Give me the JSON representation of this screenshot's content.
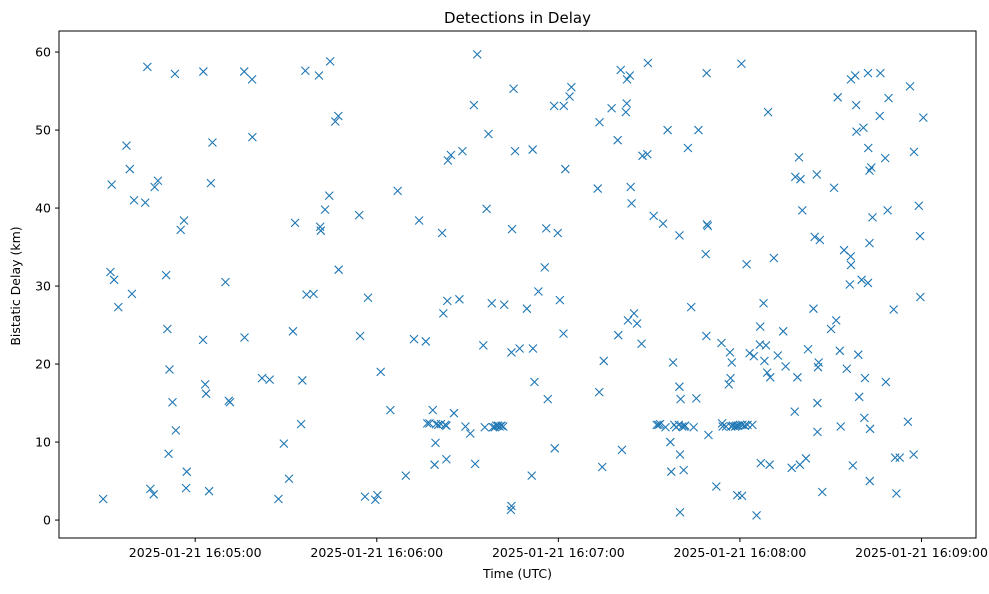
{
  "chart_data": {
    "type": "scatter",
    "title": "Detections in Delay",
    "xlabel": "Time (UTC)",
    "ylabel": "Bistatic Delay (km)",
    "marker": "x",
    "color": "#1f77b4",
    "grid": false,
    "legend": "none",
    "x_start": "2025-01-21 16:04:15",
    "x_end": "2025-01-21 16:09:18",
    "xlim": [
      0,
      303
    ],
    "ylim": [
      -2.3,
      62.7
    ],
    "x_ticks": [
      {
        "t": 45,
        "label": "2025-01-21 16:05:00"
      },
      {
        "t": 105,
        "label": "2025-01-21 16:06:00"
      },
      {
        "t": 165,
        "label": "2025-01-21 16:07:00"
      },
      {
        "t": 225,
        "label": "2025-01-21 16:08:00"
      },
      {
        "t": 285,
        "label": "2025-01-21 16:09:00"
      }
    ],
    "y_ticks": [
      {
        "v": 0,
        "label": "0"
      },
      {
        "v": 10,
        "label": "10"
      },
      {
        "v": 20,
        "label": "20"
      },
      {
        "v": 30,
        "label": "30"
      },
      {
        "v": 40,
        "label": "40"
      },
      {
        "v": 50,
        "label": "50"
      },
      {
        "v": 60,
        "label": "60"
      }
    ],
    "points": [
      [
        14.6,
        2.7
      ],
      [
        17.0,
        31.8
      ],
      [
        17.4,
        43.0
      ],
      [
        18.2,
        30.8
      ],
      [
        19.6,
        27.3
      ],
      [
        22.3,
        48.0
      ],
      [
        23.4,
        45.0
      ],
      [
        24.1,
        29.0
      ],
      [
        24.8,
        41.0
      ],
      [
        28.5,
        40.7
      ],
      [
        29.2,
        58.1
      ],
      [
        30.2,
        4.0
      ],
      [
        31.3,
        3.3
      ],
      [
        31.6,
        42.7
      ],
      [
        32.7,
        43.5
      ],
      [
        35.4,
        31.4
      ],
      [
        35.8,
        24.5
      ],
      [
        36.2,
        8.5
      ],
      [
        36.5,
        19.3
      ],
      [
        37.5,
        15.1
      ],
      [
        38.3,
        57.2
      ],
      [
        38.6,
        11.5
      ],
      [
        40.2,
        37.2
      ],
      [
        41.3,
        38.4
      ],
      [
        42.0,
        4.1
      ],
      [
        42.2,
        6.2
      ],
      [
        47.7,
        57.5
      ],
      [
        47.6,
        23.1
      ],
      [
        48.3,
        17.4
      ],
      [
        48.6,
        16.2
      ],
      [
        49.6,
        3.7
      ],
      [
        50.2,
        43.2
      ],
      [
        50.7,
        48.4
      ],
      [
        55.0,
        30.5
      ],
      [
        56.1,
        15.3
      ],
      [
        56.5,
        15.1
      ],
      [
        61.2,
        57.5
      ],
      [
        61.3,
        23.4
      ],
      [
        63.8,
        56.5
      ],
      [
        63.9,
        49.1
      ],
      [
        67.1,
        18.2
      ],
      [
        69.6,
        18.0
      ],
      [
        72.5,
        2.7
      ],
      [
        74.3,
        9.8
      ],
      [
        76.0,
        5.3
      ],
      [
        77.3,
        24.2
      ],
      [
        78.0,
        38.1
      ],
      [
        80.0,
        12.3
      ],
      [
        80.4,
        17.9
      ],
      [
        81.4,
        57.6
      ],
      [
        81.8,
        28.9
      ],
      [
        84.1,
        29.0
      ],
      [
        85.9,
        57.0
      ],
      [
        86.3,
        37.6
      ],
      [
        86.5,
        37.1
      ],
      [
        87.9,
        39.8
      ],
      [
        89.3,
        41.6
      ],
      [
        89.6,
        58.8
      ],
      [
        91.3,
        51.1
      ],
      [
        92.3,
        51.8
      ],
      [
        92.4,
        32.1
      ],
      [
        99.2,
        39.1
      ],
      [
        99.5,
        23.6
      ],
      [
        101.1,
        3.0
      ],
      [
        102.1,
        28.5
      ],
      [
        104.5,
        2.6
      ],
      [
        105.2,
        3.2
      ],
      [
        106.3,
        19.0
      ],
      [
        109.5,
        14.1
      ],
      [
        111.9,
        42.2
      ],
      [
        114.6,
        5.7
      ],
      [
        117.3,
        23.2
      ],
      [
        119.0,
        38.4
      ],
      [
        121.2,
        22.9
      ],
      [
        121.7,
        12.4
      ],
      [
        122.4,
        12.4
      ],
      [
        123.5,
        14.1
      ],
      [
        124.1,
        7.1
      ],
      [
        124.4,
        9.9
      ],
      [
        124.6,
        12.3
      ],
      [
        125.3,
        12.2
      ],
      [
        126.2,
        12.3
      ],
      [
        126.6,
        36.8
      ],
      [
        127.0,
        26.5
      ],
      [
        127.6,
        12.2
      ],
      [
        128.0,
        12.1
      ],
      [
        128.5,
        46.1
      ],
      [
        128.0,
        7.8
      ],
      [
        128.3,
        28.1
      ],
      [
        129.5,
        46.8
      ],
      [
        130.5,
        13.7
      ],
      [
        132.3,
        28.3
      ],
      [
        133.3,
        47.3
      ],
      [
        134.3,
        12.0
      ],
      [
        135.9,
        11.1
      ],
      [
        137.1,
        53.2
      ],
      [
        137.5,
        7.2
      ],
      [
        138.2,
        59.7
      ],
      [
        140.2,
        22.4
      ],
      [
        140.7,
        11.9
      ],
      [
        141.3,
        39.9
      ],
      [
        141.9,
        49.5
      ],
      [
        143.0,
        27.8
      ],
      [
        143.4,
        11.9
      ],
      [
        144.0,
        11.9
      ],
      [
        144.5,
        12.1
      ],
      [
        145.1,
        12.1
      ],
      [
        145.6,
        12.0
      ],
      [
        146.2,
        12.1
      ],
      [
        146.8,
        12.0
      ],
      [
        147.1,
        27.6
      ],
      [
        149.3,
        1.3
      ],
      [
        149.5,
        1.8
      ],
      [
        149.5,
        21.5
      ],
      [
        149.7,
        37.3
      ],
      [
        150.2,
        55.3
      ],
      [
        150.7,
        47.3
      ],
      [
        152.2,
        22.0
      ],
      [
        154.6,
        27.1
      ],
      [
        156.2,
        5.7
      ],
      [
        156.5,
        47.5
      ],
      [
        156.6,
        22.0
      ],
      [
        157.1,
        17.7
      ],
      [
        158.4,
        29.3
      ],
      [
        160.5,
        32.4
      ],
      [
        161.0,
        37.4
      ],
      [
        161.5,
        15.5
      ],
      [
        163.6,
        53.1
      ],
      [
        163.8,
        9.2
      ],
      [
        164.8,
        36.8
      ],
      [
        165.5,
        28.2
      ],
      [
        166.7,
        23.9
      ],
      [
        166.8,
        53.1
      ],
      [
        167.3,
        45.0
      ],
      [
        168.7,
        54.3
      ],
      [
        169.3,
        55.5
      ],
      [
        178.0,
        42.5
      ],
      [
        178.5,
        16.4
      ],
      [
        178.6,
        51.0
      ],
      [
        179.5,
        6.8
      ],
      [
        180.0,
        20.4
      ],
      [
        182.6,
        52.8
      ],
      [
        184.6,
        48.7
      ],
      [
        184.8,
        23.7
      ],
      [
        185.6,
        57.7
      ],
      [
        186.0,
        9.0
      ],
      [
        187.3,
        52.3
      ],
      [
        187.6,
        53.4
      ],
      [
        187.7,
        56.5
      ],
      [
        188.0,
        25.6
      ],
      [
        188.6,
        57.0
      ],
      [
        188.9,
        42.7
      ],
      [
        189.2,
        40.6
      ],
      [
        190.0,
        26.5
      ],
      [
        191.0,
        25.2
      ],
      [
        192.5,
        22.6
      ],
      [
        192.8,
        46.7
      ],
      [
        194.4,
        46.9
      ],
      [
        194.6,
        58.6
      ],
      [
        196.5,
        39.0
      ],
      [
        197.5,
        12.2
      ],
      [
        198.1,
        12.2
      ],
      [
        198.6,
        12.3
      ],
      [
        199.6,
        38.0
      ],
      [
        200.4,
        11.9
      ],
      [
        201.1,
        50.0
      ],
      [
        202.0,
        10.0
      ],
      [
        202.3,
        6.2
      ],
      [
        202.9,
        20.2
      ],
      [
        203.3,
        12.2
      ],
      [
        203.9,
        11.9
      ],
      [
        204.8,
        12.2
      ],
      [
        205.2,
        1.0
      ],
      [
        205.0,
        36.5
      ],
      [
        205.0,
        17.1
      ],
      [
        205.2,
        8.4
      ],
      [
        205.4,
        15.5
      ],
      [
        205.9,
        12.0
      ],
      [
        206.4,
        6.4
      ],
      [
        206.6,
        12.0
      ],
      [
        206.9,
        12.1
      ],
      [
        207.8,
        47.7
      ],
      [
        208.9,
        27.3
      ],
      [
        209.7,
        11.9
      ],
      [
        210.6,
        15.6
      ],
      [
        211.3,
        50.0
      ],
      [
        214.0,
        57.3
      ],
      [
        213.7,
        34.1
      ],
      [
        213.9,
        23.6
      ],
      [
        214.1,
        37.9
      ],
      [
        214.4,
        37.7
      ],
      [
        214.6,
        10.9
      ],
      [
        217.2,
        4.3
      ],
      [
        218.9,
        22.7
      ],
      [
        219.1,
        12.4
      ],
      [
        219.3,
        12.0
      ],
      [
        220.4,
        12.0
      ],
      [
        221.3,
        17.4
      ],
      [
        221.7,
        21.5
      ],
      [
        221.9,
        18.2
      ],
      [
        222.1,
        12.0
      ],
      [
        222.3,
        20.2
      ],
      [
        222.6,
        12.1
      ],
      [
        223.4,
        12.0
      ],
      [
        223.8,
        12.1
      ],
      [
        224.1,
        3.2
      ],
      [
        224.4,
        12.1
      ],
      [
        225.0,
        12.2
      ],
      [
        225.5,
        58.5
      ],
      [
        225.7,
        3.1
      ],
      [
        225.8,
        12.2
      ],
      [
        226.6,
        12.1
      ],
      [
        227.2,
        32.8
      ],
      [
        227.5,
        12.2
      ],
      [
        228.2,
        21.4
      ],
      [
        229.1,
        12.2
      ],
      [
        229.6,
        21.0
      ],
      [
        230.5,
        0.6
      ],
      [
        231.6,
        22.5
      ],
      [
        231.7,
        24.8
      ],
      [
        231.9,
        7.3
      ],
      [
        232.8,
        27.8
      ],
      [
        233.1,
        20.4
      ],
      [
        233.6,
        22.4
      ],
      [
        234.0,
        18.9
      ],
      [
        234.3,
        52.3
      ],
      [
        234.8,
        7.1
      ],
      [
        235.0,
        18.3
      ],
      [
        236.2,
        33.6
      ],
      [
        237.5,
        21.1
      ],
      [
        239.3,
        24.2
      ],
      [
        240.1,
        19.7
      ],
      [
        242.1,
        6.7
      ],
      [
        243.1,
        13.9
      ],
      [
        243.3,
        44.0
      ],
      [
        244.0,
        18.3
      ],
      [
        244.5,
        46.5
      ],
      [
        244.8,
        7.1
      ],
      [
        245.0,
        43.7
      ],
      [
        245.6,
        39.7
      ],
      [
        246.8,
        7.9
      ],
      [
        247.5,
        21.9
      ],
      [
        249.3,
        27.1
      ],
      [
        249.7,
        36.3
      ],
      [
        250.4,
        44.3
      ],
      [
        250.6,
        15.0
      ],
      [
        250.6,
        11.3
      ],
      [
        250.8,
        19.6
      ],
      [
        251.0,
        20.2
      ],
      [
        251.4,
        35.9
      ],
      [
        252.2,
        3.6
      ],
      [
        255.1,
        24.5
      ],
      [
        256.1,
        42.6
      ],
      [
        256.8,
        25.6
      ],
      [
        257.3,
        54.2
      ],
      [
        258.0,
        21.7
      ],
      [
        258.3,
        12.0
      ],
      [
        259.4,
        34.6
      ],
      [
        260.3,
        19.4
      ],
      [
        261.3,
        30.2
      ],
      [
        261.6,
        33.8
      ],
      [
        261.7,
        56.5
      ],
      [
        261.7,
        32.7
      ],
      [
        262.3,
        7.0
      ],
      [
        263.1,
        57.0
      ],
      [
        263.4,
        53.2
      ],
      [
        263.5,
        49.8
      ],
      [
        264.1,
        21.2
      ],
      [
        264.4,
        15.8
      ],
      [
        265.2,
        30.8
      ],
      [
        265.8,
        50.3
      ],
      [
        266.1,
        13.1
      ],
      [
        266.3,
        18.2
      ],
      [
        267.3,
        57.3
      ],
      [
        267.3,
        30.4
      ],
      [
        267.4,
        47.7
      ],
      [
        267.8,
        35.5
      ],
      [
        267.8,
        44.8
      ],
      [
        267.9,
        5.0
      ],
      [
        268.0,
        11.7
      ],
      [
        268.4,
        45.2
      ],
      [
        268.8,
        38.8
      ],
      [
        271.2,
        51.8
      ],
      [
        271.4,
        57.3
      ],
      [
        273.0,
        46.4
      ],
      [
        273.2,
        17.7
      ],
      [
        273.8,
        39.7
      ],
      [
        274.1,
        54.1
      ],
      [
        275.8,
        27.0
      ],
      [
        276.3,
        8.0
      ],
      [
        276.7,
        3.4
      ],
      [
        277.8,
        8.0
      ],
      [
        280.5,
        12.6
      ],
      [
        281.2,
        55.6
      ],
      [
        282.4,
        8.4
      ],
      [
        282.5,
        47.2
      ],
      [
        284.1,
        40.3
      ],
      [
        284.5,
        36.4
      ],
      [
        284.6,
        28.6
      ],
      [
        285.6,
        51.6
      ]
    ]
  }
}
